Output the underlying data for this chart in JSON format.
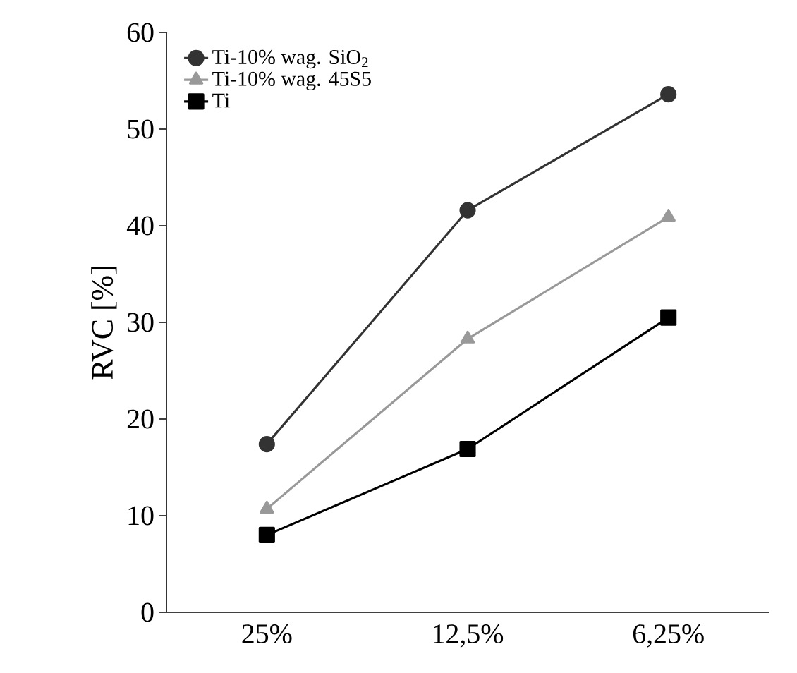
{
  "chart_data": {
    "type": "line",
    "ylabel": "RVC [%]",
    "categories": [
      "25%",
      "12,5%",
      "6,25%"
    ],
    "series": [
      {
        "name": "Ti-10% wag. SiO$_{2}$",
        "color": "#333333",
        "marker": "circle",
        "values": [
          17.4,
          41.6,
          53.6
        ]
      },
      {
        "name": "Ti-10% wag. 45S5",
        "color": "#999999",
        "marker": "triangle",
        "values": [
          10.7,
          28.3,
          40.9
        ]
      },
      {
        "name": "Ti",
        "color": "#000000",
        "marker": "square",
        "values": [
          8.0,
          16.9,
          30.5
        ]
      }
    ],
    "ylim": [
      0,
      60
    ],
    "yticks": [
      0,
      10,
      20,
      30,
      40,
      50,
      60
    ],
    "grid": false,
    "legend": "top left"
  }
}
